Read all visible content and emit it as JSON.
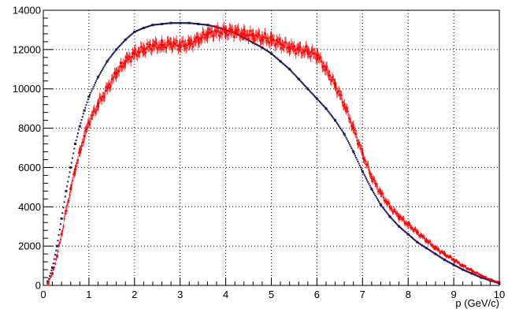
{
  "chart_data": {
    "type": "scatter",
    "title": "",
    "xlabel": "p (GeV/c)",
    "ylabel": "",
    "xlim": [
      0,
      10
    ],
    "ylim": [
      0,
      14000
    ],
    "x_ticks": [
      "0",
      "1",
      "2",
      "3",
      "4",
      "5",
      "6",
      "7",
      "8",
      "9",
      "10"
    ],
    "y_ticks": [
      "0",
      "2000",
      "4000",
      "6000",
      "8000",
      "10000",
      "12000",
      "14000"
    ],
    "grid": true,
    "grid_style": "dotted",
    "legend": "none",
    "series": [
      {
        "color": "#1a1a5e",
        "marker": "point",
        "error_bars": false,
        "x": [
          0.1,
          0.2,
          0.3,
          0.4,
          0.5,
          0.6,
          0.7,
          0.8,
          0.9,
          1.0,
          1.2,
          1.4,
          1.6,
          1.8,
          2.0,
          2.2,
          2.4,
          2.6,
          2.8,
          3.0,
          3.2,
          3.4,
          3.6,
          3.8,
          4.0,
          4.2,
          4.4,
          4.6,
          4.8,
          5.0,
          5.2,
          5.4,
          5.6,
          5.8,
          6.0,
          6.2,
          6.4,
          6.6,
          6.8,
          7.0,
          7.2,
          7.4,
          7.6,
          7.8,
          8.0,
          8.2,
          8.4,
          8.6,
          8.8,
          9.0,
          9.2,
          9.4,
          9.6,
          9.8,
          10.0
        ],
        "y": [
          200,
          900,
          2000,
          3400,
          4800,
          6000,
          7200,
          8100,
          8900,
          9600,
          10600,
          11400,
          12000,
          12500,
          12900,
          13100,
          13250,
          13300,
          13350,
          13350,
          13350,
          13300,
          13250,
          13150,
          13000,
          12850,
          12600,
          12350,
          12100,
          11800,
          11400,
          11000,
          10500,
          10000,
          9500,
          9000,
          8400,
          7700,
          6800,
          5800,
          4900,
          4100,
          3500,
          3000,
          2600,
          2200,
          1900,
          1600,
          1300,
          1050,
          800,
          600,
          400,
          250,
          100
        ]
      },
      {
        "color": "#ff0000",
        "marker": "point",
        "error_bars": true,
        "x": [
          0.1,
          0.2,
          0.3,
          0.4,
          0.5,
          0.6,
          0.7,
          0.8,
          0.9,
          1.0,
          1.2,
          1.4,
          1.6,
          1.8,
          2.0,
          2.2,
          2.4,
          2.6,
          2.8,
          3.0,
          3.2,
          3.4,
          3.6,
          3.8,
          4.0,
          4.2,
          4.4,
          4.6,
          4.8,
          5.0,
          5.2,
          5.4,
          5.6,
          5.8,
          6.0,
          6.2,
          6.4,
          6.6,
          6.8,
          7.0,
          7.2,
          7.4,
          7.6,
          7.8,
          8.0,
          8.2,
          8.4,
          8.6,
          8.8,
          9.0,
          9.2,
          9.4,
          9.6,
          9.8,
          10.0
        ],
        "y": [
          100,
          600,
          1500,
          2600,
          3800,
          4900,
          5900,
          6800,
          7600,
          8300,
          9200,
          10000,
          10800,
          11400,
          11800,
          12000,
          12200,
          12200,
          12300,
          12200,
          12300,
          12500,
          12800,
          12900,
          12900,
          12900,
          12800,
          12700,
          12600,
          12500,
          12300,
          12100,
          12000,
          11900,
          11700,
          11000,
          10200,
          9200,
          8000,
          6700,
          5500,
          4700,
          4000,
          3500,
          3100,
          2700,
          2300,
          1900,
          1600,
          1300,
          1000,
          750,
          500,
          300,
          150
        ]
      }
    ]
  }
}
